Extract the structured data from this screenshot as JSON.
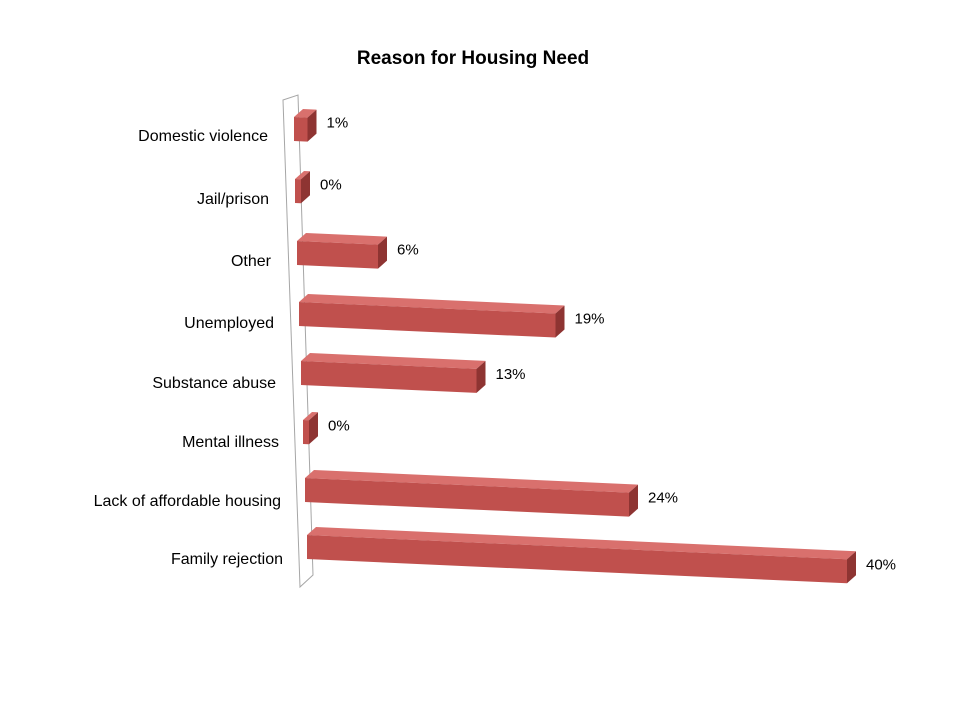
{
  "chart_data": {
    "type": "bar",
    "orientation": "horizontal",
    "title": "Reason for Housing Need",
    "categories": [
      "Domestic violence",
      "Jail/prison",
      "Other",
      "Unemployed",
      "Substance abuse",
      "Mental illness",
      "Lack of affordable housing",
      "Family rejection"
    ],
    "values": [
      1,
      0,
      6,
      19,
      13,
      0,
      24,
      40
    ],
    "value_labels": [
      "1%",
      "0%",
      "6%",
      "19%",
      "13%",
      "0%",
      "24%",
      "40%"
    ],
    "unit": "%",
    "xlim": [
      0,
      40
    ],
    "grid": false,
    "legend": "none",
    "colors": {
      "bar_front": "#c0504d",
      "bar_top": "#d9706d",
      "bar_side": "#8e3432",
      "wall_stroke": "#a6a6a6"
    }
  }
}
